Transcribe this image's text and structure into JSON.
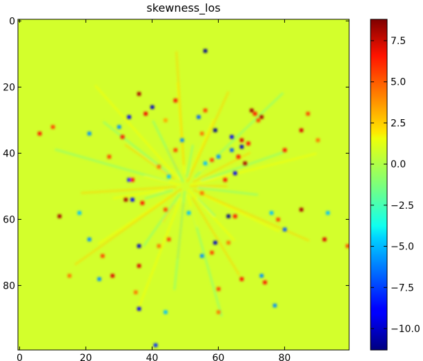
{
  "chart_data": {
    "type": "heatmap",
    "title": "skewness_los",
    "xlabel": "",
    "ylabel": "",
    "grid_shape": [
      100,
      100
    ],
    "xlim": [
      -0.5,
      99.5
    ],
    "ylim": [
      99.5,
      -0.5
    ],
    "x_ticks": [
      0,
      20,
      40,
      60,
      80
    ],
    "y_ticks": [
      0,
      20,
      40,
      60,
      80
    ],
    "colormap": "jet",
    "background_value": 0.4,
    "colorbar": {
      "range": [
        -11.3,
        8.8
      ],
      "ticks": [
        7.5,
        5.0,
        2.5,
        0.0,
        -2.5,
        -5.0,
        -7.5,
        -10.0
      ],
      "tick_labels": [
        "7.5",
        "5.0",
        "2.5",
        "0.0",
        "−2.5",
        "−5.0",
        "−7.5",
        "−10.0"
      ]
    },
    "points": [
      {
        "x": 56,
        "y": 9,
        "v": -11
      },
      {
        "x": 36,
        "y": 22,
        "v": 8
      },
      {
        "x": 40,
        "y": 26,
        "v": -10
      },
      {
        "x": 31,
        "y": 35,
        "v": 6
      },
      {
        "x": 38,
        "y": 28,
        "v": 6.5
      },
      {
        "x": 44,
        "y": 30,
        "v": 3
      },
      {
        "x": 33,
        "y": 29,
        "v": -9
      },
      {
        "x": 54,
        "y": 29,
        "v": -7
      },
      {
        "x": 59,
        "y": 33,
        "v": -11
      },
      {
        "x": 70,
        "y": 27,
        "v": 8
      },
      {
        "x": 71,
        "y": 28,
        "v": 6
      },
      {
        "x": 72,
        "y": 30,
        "v": 5
      },
      {
        "x": 73,
        "y": 29,
        "v": 8
      },
      {
        "x": 64,
        "y": 35,
        "v": -9
      },
      {
        "x": 67,
        "y": 36,
        "v": 7
      },
      {
        "x": 69,
        "y": 37,
        "v": 6
      },
      {
        "x": 67,
        "y": 38,
        "v": -10
      },
      {
        "x": 55,
        "y": 34,
        "v": 4
      },
      {
        "x": 68,
        "y": 43,
        "v": 8
      },
      {
        "x": 65,
        "y": 46,
        "v": -9
      },
      {
        "x": 62,
        "y": 48,
        "v": 6
      },
      {
        "x": 33,
        "y": 48,
        "v": -8
      },
      {
        "x": 34,
        "y": 48,
        "v": 6
      },
      {
        "x": 32,
        "y": 54,
        "v": 8
      },
      {
        "x": 34,
        "y": 54,
        "v": -9
      },
      {
        "x": 37,
        "y": 55,
        "v": 6
      },
      {
        "x": 63,
        "y": 59,
        "v": -11
      },
      {
        "x": 65,
        "y": 59,
        "v": 6
      },
      {
        "x": 12,
        "y": 59,
        "v": 8
      },
      {
        "x": 36,
        "y": 68,
        "v": -10
      },
      {
        "x": 36,
        "y": 74,
        "v": 7
      },
      {
        "x": 42,
        "y": 68,
        "v": 4
      },
      {
        "x": 59,
        "y": 67,
        "v": -10
      },
      {
        "x": 63,
        "y": 67,
        "v": 4
      },
      {
        "x": 28,
        "y": 77,
        "v": 7
      },
      {
        "x": 36,
        "y": 87,
        "v": -9
      },
      {
        "x": 41,
        "y": 98,
        "v": -8
      },
      {
        "x": 60,
        "y": 81,
        "v": 5
      },
      {
        "x": 85,
        "y": 57,
        "v": 8
      },
      {
        "x": 85,
        "y": 33,
        "v": 7
      },
      {
        "x": 92,
        "y": 66,
        "v": 7
      },
      {
        "x": 80,
        "y": 63,
        "v": -7
      },
      {
        "x": 73,
        "y": 77,
        "v": -6
      },
      {
        "x": 74,
        "y": 79,
        "v": 6
      },
      {
        "x": 80,
        "y": 39,
        "v": 6
      },
      {
        "x": 99,
        "y": 68,
        "v": 5
      },
      {
        "x": 6,
        "y": 34,
        "v": 6
      },
      {
        "x": 21,
        "y": 34,
        "v": -6
      },
      {
        "x": 10,
        "y": 32,
        "v": 5
      },
      {
        "x": 21,
        "y": 66,
        "v": -6
      },
      {
        "x": 15,
        "y": 77,
        "v": 4
      },
      {
        "x": 27,
        "y": 41,
        "v": 5
      },
      {
        "x": 49,
        "y": 36,
        "v": -6
      },
      {
        "x": 47,
        "y": 39,
        "v": 5
      },
      {
        "x": 58,
        "y": 42,
        "v": 5
      },
      {
        "x": 60,
        "y": 41,
        "v": -6
      },
      {
        "x": 51,
        "y": 58,
        "v": -5
      },
      {
        "x": 44,
        "y": 57,
        "v": 5
      },
      {
        "x": 55,
        "y": 52,
        "v": 4
      },
      {
        "x": 24,
        "y": 78,
        "v": -6
      },
      {
        "x": 77,
        "y": 86,
        "v": -6
      },
      {
        "x": 67,
        "y": 78,
        "v": 6
      },
      {
        "x": 87,
        "y": 28,
        "v": 5
      },
      {
        "x": 47,
        "y": 24,
        "v": 6
      },
      {
        "x": 56,
        "y": 27,
        "v": 5
      },
      {
        "x": 64,
        "y": 39,
        "v": -7
      },
      {
        "x": 66,
        "y": 41,
        "v": 6
      },
      {
        "x": 30,
        "y": 32,
        "v": -6
      },
      {
        "x": 45,
        "y": 66,
        "v": 5
      },
      {
        "x": 55,
        "y": 71,
        "v": -6
      },
      {
        "x": 58,
        "y": 70,
        "v": 5
      },
      {
        "x": 35,
        "y": 82,
        "v": 4
      },
      {
        "x": 44,
        "y": 88,
        "v": -5
      },
      {
        "x": 60,
        "y": 88,
        "v": 4
      },
      {
        "x": 76,
        "y": 58,
        "v": -5
      },
      {
        "x": 78,
        "y": 60,
        "v": 5
      },
      {
        "x": 42,
        "y": 44,
        "v": 4
      },
      {
        "x": 45,
        "y": 47,
        "v": -5
      },
      {
        "x": 56,
        "y": 43,
        "v": -5
      },
      {
        "x": 25,
        "y": 71,
        "v": 5
      },
      {
        "x": 18,
        "y": 58,
        "v": -5
      },
      {
        "x": 90,
        "y": 36,
        "v": 4
      },
      {
        "x": 93,
        "y": 58,
        "v": -5
      }
    ]
  }
}
